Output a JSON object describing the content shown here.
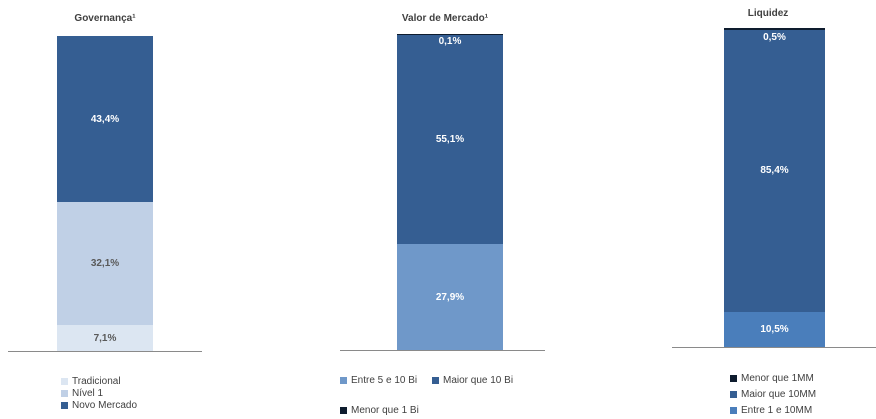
{
  "chart_data": [
    {
      "type": "bar",
      "title": "Governança¹",
      "categories": [
        ""
      ],
      "series": [
        {
          "name": "Tradicional",
          "values": [
            7.1
          ],
          "label": "7,1%",
          "color": "#dce6f2",
          "text_color": "#595959"
        },
        {
          "name": "Nível 1",
          "values": [
            32.1
          ],
          "label": "32,1%",
          "color": "#c0d0e6",
          "text_color": "#595959"
        },
        {
          "name": "Novo Mercado",
          "values": [
            43.4
          ],
          "label": "43,4%",
          "color": "#355e92",
          "text_color": "#ffffff"
        }
      ],
      "ylim": [
        0,
        82.6
      ],
      "legend": [
        {
          "label": "Tradicional",
          "color": "#dce6f2"
        },
        {
          "label": "Nível 1",
          "color": "#c0d0e6"
        },
        {
          "label": "Novo Mercado",
          "color": "#355e92"
        }
      ]
    },
    {
      "type": "bar",
      "title": "Valor de Mercado¹",
      "categories": [
        ""
      ],
      "series": [
        {
          "name": "Entre 5 e 10 Bi",
          "values": [
            27.9
          ],
          "label": "27,9%",
          "color": "#6f98c9",
          "text_color": "#ffffff"
        },
        {
          "name": "Maior que 10 Bi",
          "values": [
            55.1
          ],
          "label": "55,1%",
          "color": "#355e92",
          "text_color": "#ffffff"
        },
        {
          "name": "Menor que 1 Bi",
          "values": [
            0.1
          ],
          "label": "0,1%",
          "color": "#0e1c2e",
          "text_color": "#ffffff"
        }
      ],
      "ylim": [
        0,
        83.1
      ],
      "legend": [
        {
          "label": "Entre 5 e 10 Bi",
          "color": "#6f98c9"
        },
        {
          "label": "Maior que 10 Bi",
          "color": "#355e92"
        },
        {
          "label": "Menor que 1 Bi",
          "color": "#0e1c2e"
        }
      ]
    },
    {
      "type": "bar",
      "title": "Liquidez",
      "categories": [
        ""
      ],
      "series": [
        {
          "name": "Entre 1 e 10MM",
          "values": [
            10.5
          ],
          "label": "10,5%",
          "color": "#4a7ebb",
          "text_color": "#ffffff"
        },
        {
          "name": "Maior que 10MM",
          "values": [
            85.4
          ],
          "label": "85,4%",
          "color": "#355e92",
          "text_color": "#ffffff"
        },
        {
          "name": "Menor que 1MM",
          "values": [
            0.5
          ],
          "label": "0,5%",
          "color": "#0e1c2e",
          "text_color": "#ffffff"
        }
      ],
      "ylim": [
        0,
        96.4
      ],
      "legend": [
        {
          "label": "Menor que 1MM",
          "color": "#0e1c2e"
        },
        {
          "label": "Maior que 10MM",
          "color": "#355e92"
        },
        {
          "label": "Entre 1 e 10MM",
          "color": "#4a7ebb"
        }
      ]
    }
  ]
}
